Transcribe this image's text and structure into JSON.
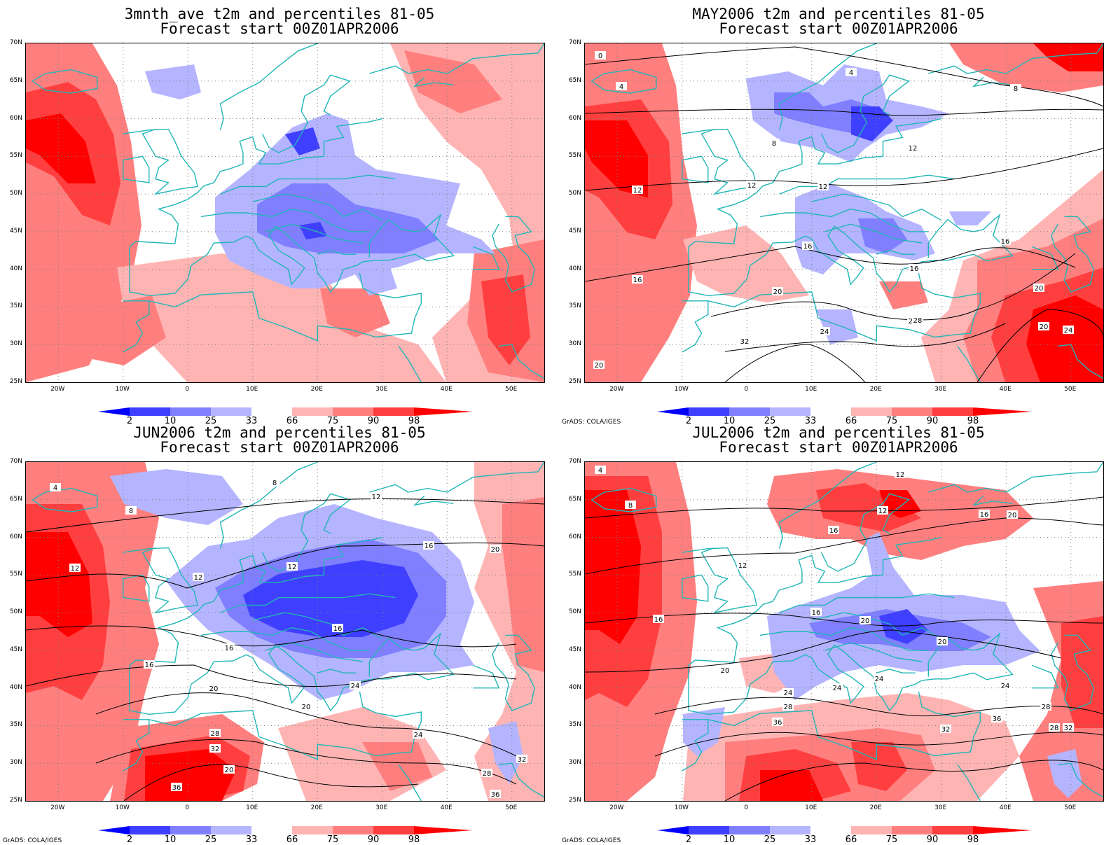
{
  "panels": [
    {
      "title_line1": "3mnth_ave t2m and percentiles 81-05",
      "title_line2": "Forecast start 00Z01APR2006",
      "credit": "",
      "contour_labels": []
    },
    {
      "title_line1": "MAY2006 t2m and percentiles 81-05",
      "title_line2": "Forecast start 00Z01APR2006",
      "credit": "GrADS: COLA/IGES",
      "contour_labels": [
        "0",
        "4",
        "4",
        "8",
        "8",
        "12",
        "12",
        "12",
        "12",
        "16",
        "16",
        "16",
        "16",
        "20",
        "20",
        "24",
        "24",
        "28",
        "32",
        "20",
        "24",
        "20"
      ]
    },
    {
      "title_line1": "JUN2006 t2m and percentiles 81-05",
      "title_line2": "Forecast start 00Z01APR2006",
      "credit": "GrADS: COLA/IGES",
      "contour_labels": [
        "4",
        "8",
        "8",
        "12",
        "12",
        "12",
        "12",
        "16",
        "16",
        "16",
        "16",
        "20",
        "20",
        "20",
        "24",
        "28",
        "32",
        "20",
        "24",
        "28",
        "36",
        "32",
        "36"
      ]
    },
    {
      "title_line1": "JUL2006 t2m and percentiles 81-05",
      "title_line2": "Forecast start 00Z01APR2006",
      "credit": "GrADS: COLA/IGES",
      "contour_labels": [
        "4",
        "8",
        "12",
        "12",
        "12",
        "16",
        "16",
        "16",
        "16",
        "20",
        "20",
        "20",
        "20",
        "24",
        "24",
        "24",
        "24",
        "28",
        "28",
        "32",
        "32",
        "36",
        "36",
        "28"
      ]
    }
  ],
  "axes": {
    "lat_labels": [
      "70N",
      "65N",
      "60N",
      "55N",
      "50N",
      "45N",
      "40N",
      "35N",
      "30N",
      "25N"
    ],
    "lon_labels": [
      "20W",
      "10W",
      "0",
      "10E",
      "20E",
      "30E",
      "40E",
      "50E"
    ]
  },
  "colorbar": {
    "labels": [
      "2",
      "10",
      "25",
      "33",
      "66",
      "75",
      "90",
      "98"
    ],
    "colors": [
      "#0000ff",
      "#3f3fff",
      "#7f7fff",
      "#b4b4ff",
      "#ffffff",
      "#ffb4b4",
      "#ff7f7f",
      "#ff3f3f",
      "#ff0000"
    ]
  },
  "map_style": {
    "coast_color": "#21b6b6",
    "contour_color": "#000000",
    "grid_color": "#7f7f7f"
  }
}
